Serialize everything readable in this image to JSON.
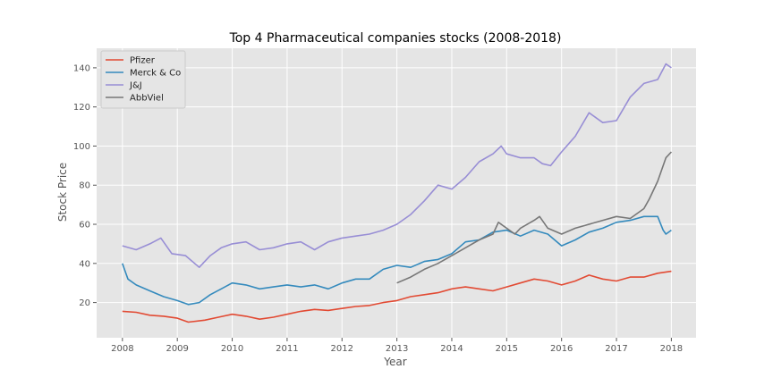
{
  "chart_data": {
    "type": "line",
    "title": "Top 4 Pharmaceutical companies stocks (2008-2018)",
    "xlabel": "Year",
    "ylabel": "Stock Price",
    "xlim": [
      2007.53,
      2018.45
    ],
    "ylim": [
      2,
      150
    ],
    "x_ticks": [
      2008,
      2009,
      2010,
      2011,
      2012,
      2013,
      2014,
      2015,
      2016,
      2017,
      2018
    ],
    "x_tick_labels": [
      "2008",
      "2009",
      "2010",
      "2011",
      "2012",
      "2013",
      "2014",
      "2015",
      "2016",
      "2017",
      "2018"
    ],
    "y_ticks": [
      20,
      40,
      60,
      80,
      100,
      120,
      140
    ],
    "y_tick_labels": [
      "20",
      "40",
      "60",
      "80",
      "100",
      "120",
      "140"
    ],
    "grid": true,
    "legend_position": "top-left",
    "series": [
      {
        "name": "Pfizer",
        "color": "#E24A33",
        "x": [
          2008.0,
          2008.25,
          2008.5,
          2008.75,
          2009.0,
          2009.2,
          2009.5,
          2009.75,
          2010.0,
          2010.25,
          2010.5,
          2010.75,
          2011.0,
          2011.25,
          2011.5,
          2011.75,
          2012.0,
          2012.25,
          2012.5,
          2012.75,
          2013.0,
          2013.25,
          2013.5,
          2013.75,
          2014.0,
          2014.25,
          2014.5,
          2014.75,
          2015.0,
          2015.25,
          2015.5,
          2015.75,
          2016.0,
          2016.25,
          2016.5,
          2016.75,
          2017.0,
          2017.25,
          2017.5,
          2017.75,
          2018.0
        ],
        "values": [
          15.5,
          15,
          13.5,
          13,
          12,
          10,
          11,
          12.5,
          14,
          13,
          11.5,
          12.5,
          14,
          15.5,
          16.5,
          16,
          17,
          18,
          18.5,
          20,
          21,
          23,
          24,
          25,
          27,
          28,
          27,
          26,
          28,
          30,
          32,
          31,
          29,
          31,
          34,
          32,
          31,
          33,
          33,
          35,
          36
        ]
      },
      {
        "name": "Merck & Co",
        "color": "#348ABD",
        "x": [
          2008.0,
          2008.05,
          2008.1,
          2008.25,
          2008.5,
          2008.75,
          2009.0,
          2009.2,
          2009.4,
          2009.6,
          2009.8,
          2010.0,
          2010.25,
          2010.5,
          2010.75,
          2011.0,
          2011.25,
          2011.5,
          2011.75,
          2012.0,
          2012.25,
          2012.5,
          2012.75,
          2013.0,
          2013.25,
          2013.5,
          2013.75,
          2014.0,
          2014.25,
          2014.5,
          2014.75,
          2015.0,
          2015.25,
          2015.5,
          2015.75,
          2016.0,
          2016.25,
          2016.5,
          2016.75,
          2017.0,
          2017.25,
          2017.5,
          2017.75,
          2017.85,
          2017.9,
          2018.0
        ],
        "values": [
          40,
          36,
          32,
          29,
          26,
          23,
          21,
          19,
          20,
          24,
          27,
          30,
          29,
          27,
          28,
          29,
          28,
          29,
          27,
          30,
          32,
          32,
          37,
          39,
          38,
          41,
          42,
          45,
          51,
          52,
          56,
          57,
          54,
          57,
          55,
          49,
          52,
          56,
          58,
          61,
          62,
          64,
          64,
          57,
          55,
          57
        ]
      },
      {
        "name": "J&J",
        "color": "#988ED5",
        "x": [
          2008.0,
          2008.25,
          2008.5,
          2008.7,
          2008.9,
          2009.15,
          2009.4,
          2009.6,
          2009.8,
          2010.0,
          2010.25,
          2010.5,
          2010.75,
          2011.0,
          2011.25,
          2011.5,
          2011.75,
          2012.0,
          2012.25,
          2012.5,
          2012.75,
          2013.0,
          2013.25,
          2013.5,
          2013.75,
          2014.0,
          2014.25,
          2014.5,
          2014.75,
          2014.9,
          2015.0,
          2015.25,
          2015.5,
          2015.65,
          2015.8,
          2016.0,
          2016.25,
          2016.5,
          2016.75,
          2017.0,
          2017.25,
          2017.5,
          2017.75,
          2017.9,
          2018.0
        ],
        "values": [
          49,
          47,
          50,
          53,
          45,
          44,
          38,
          44,
          48,
          50,
          51,
          47,
          48,
          50,
          51,
          47,
          51,
          53,
          54,
          55,
          57,
          60,
          65,
          72,
          80,
          78,
          84,
          92,
          96,
          100,
          96,
          94,
          94,
          91,
          90,
          97,
          105,
          117,
          112,
          113,
          125,
          132,
          134,
          142,
          140
        ]
      },
      {
        "name": "AbbViel",
        "color": "#777777",
        "x": [
          2013.0,
          2013.25,
          2013.5,
          2013.75,
          2014.0,
          2014.25,
          2014.5,
          2014.75,
          2014.85,
          2015.0,
          2015.15,
          2015.25,
          2015.5,
          2015.6,
          2015.75,
          2016.0,
          2016.25,
          2016.5,
          2016.75,
          2017.0,
          2017.25,
          2017.5,
          2017.6,
          2017.75,
          2017.9,
          2018.0
        ],
        "values": [
          30,
          33,
          37,
          40,
          44,
          48,
          52,
          55,
          61,
          58,
          55,
          58,
          62,
          64,
          58,
          55,
          58,
          60,
          62,
          64,
          63,
          68,
          73,
          82,
          94,
          97
        ]
      }
    ]
  }
}
